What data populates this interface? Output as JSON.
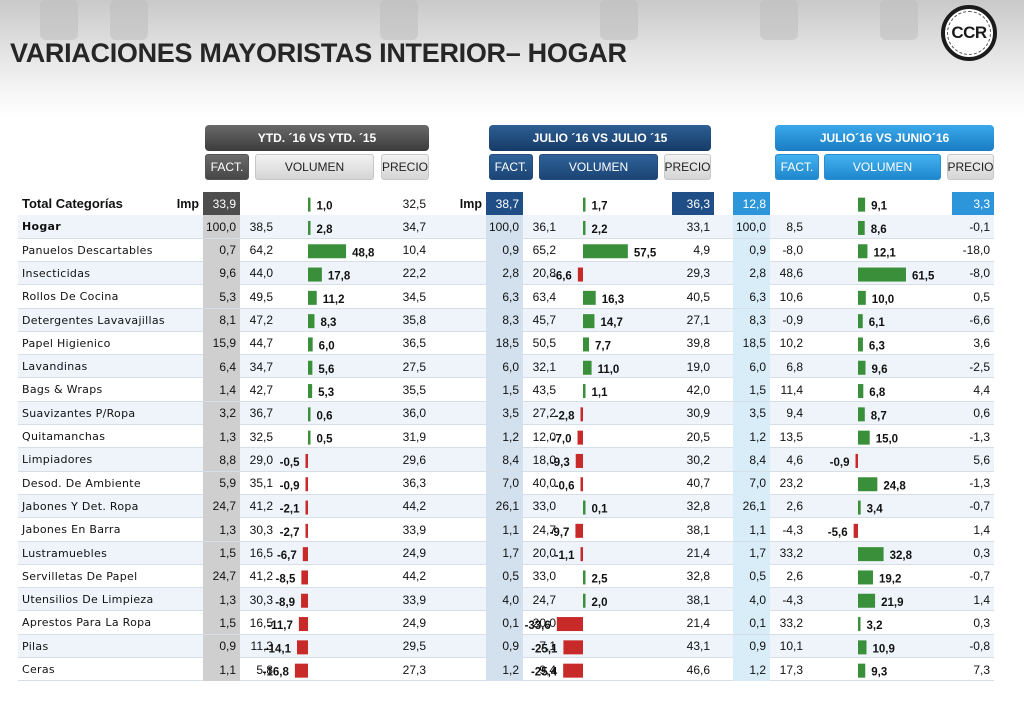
{
  "page": {
    "title": "VARIACIONES MAYORISTAS INTERIOR– HOGAR",
    "logo_text": "CCR"
  },
  "groups": {
    "ytd": {
      "label": "YTD. ´16 VS YTD. ´15"
    },
    "jul": {
      "label": "JULIO ´16 VS JULIO ´15"
    },
    "jun": {
      "label": "JULIO´16 VS JUNIO´16"
    }
  },
  "subheaders": {
    "fact": "FACT.",
    "volumen": "VOLUMEN",
    "precio": "PRECIO"
  },
  "colors": {
    "positive_bar": "#3a8f3a",
    "negative_bar": "#c82a2a",
    "zero_line": "#6aaa6a"
  },
  "chart_data": {
    "type": "table",
    "header": {
      "category": "Total  Categorías",
      "imp_label": "Imp",
      "ytd": {
        "imp": "33,9",
        "vol": 1.0,
        "precio": "32,5"
      },
      "jul": {
        "imp": "38,7",
        "vol": 1.7,
        "precio": "36,3"
      },
      "jun": {
        "imp": "12,8",
        "vol": 9.1,
        "precio": "3,3"
      }
    },
    "rows": [
      {
        "name": "Hogar",
        "bold": true,
        "ytd": {
          "imp": "100,0",
          "fact": "38,5",
          "vol": 2.8,
          "precio": "34,7"
        },
        "jul": {
          "imp": "100,0",
          "fact": "36,1",
          "vol": 2.2,
          "precio": "33,1"
        },
        "jun": {
          "imp": "100,0",
          "fact": "8,5",
          "vol": 8.6,
          "precio": "-0,1"
        }
      },
      {
        "name": "Panuelos Descartables",
        "ytd": {
          "imp": "0,7",
          "fact": "64,2",
          "vol": 48.8,
          "precio": "10,4"
        },
        "jul": {
          "imp": "0,9",
          "fact": "65,2",
          "vol": 57.5,
          "precio": "4,9"
        },
        "jun": {
          "imp": "0,9",
          "fact": "-8,0",
          "vol": 12.1,
          "precio": "-18,0"
        }
      },
      {
        "name": "Insecticidas",
        "ytd": {
          "imp": "9,6",
          "fact": "44,0",
          "vol": 17.8,
          "precio": "22,2"
        },
        "jul": {
          "imp": "2,8",
          "fact": "20,8",
          "vol": -6.6,
          "precio": "29,3"
        },
        "jun": {
          "imp": "2,8",
          "fact": "48,6",
          "vol": 61.5,
          "precio": "-8,0"
        }
      },
      {
        "name": "Rollos De Cocina",
        "ytd": {
          "imp": "5,3",
          "fact": "49,5",
          "vol": 11.2,
          "precio": "34,5"
        },
        "jul": {
          "imp": "6,3",
          "fact": "63,4",
          "vol": 16.3,
          "precio": "40,5"
        },
        "jun": {
          "imp": "6,3",
          "fact": "10,6",
          "vol": 10.0,
          "precio": "0,5"
        }
      },
      {
        "name": "Detergentes Lavavajillas",
        "ytd": {
          "imp": "8,1",
          "fact": "47,2",
          "vol": 8.3,
          "precio": "35,8"
        },
        "jul": {
          "imp": "8,3",
          "fact": "45,7",
          "vol": 14.7,
          "precio": "27,1"
        },
        "jun": {
          "imp": "8,3",
          "fact": "-0,9",
          "vol": 6.1,
          "precio": "-6,6"
        }
      },
      {
        "name": "Papel Higienico",
        "ytd": {
          "imp": "15,9",
          "fact": "44,7",
          "vol": 6.0,
          "precio": "36,5"
        },
        "jul": {
          "imp": "18,5",
          "fact": "50,5",
          "vol": 7.7,
          "precio": "39,8"
        },
        "jun": {
          "imp": "18,5",
          "fact": "10,2",
          "vol": 6.3,
          "precio": "3,6"
        }
      },
      {
        "name": "Lavandinas",
        "ytd": {
          "imp": "6,4",
          "fact": "34,7",
          "vol": 5.6,
          "precio": "27,5"
        },
        "jul": {
          "imp": "6,0",
          "fact": "32,1",
          "vol": 11.0,
          "precio": "19,0"
        },
        "jun": {
          "imp": "6,0",
          "fact": "6,8",
          "vol": 9.6,
          "precio": "-2,5"
        }
      },
      {
        "name": "Bags & Wraps",
        "ytd": {
          "imp": "1,4",
          "fact": "42,7",
          "vol": 5.3,
          "precio": "35,5"
        },
        "jul": {
          "imp": "1,5",
          "fact": "43,5",
          "vol": 1.1,
          "precio": "42,0"
        },
        "jun": {
          "imp": "1,5",
          "fact": "11,4",
          "vol": 6.8,
          "precio": "4,4"
        }
      },
      {
        "name": "Suavizantes P/Ropa",
        "ytd": {
          "imp": "3,2",
          "fact": "36,7",
          "vol": 0.6,
          "precio": "36,0"
        },
        "jul": {
          "imp": "3,5",
          "fact": "27,2",
          "vol": -2.8,
          "precio": "30,9"
        },
        "jun": {
          "imp": "3,5",
          "fact": "9,4",
          "vol": 8.7,
          "precio": "0,6"
        }
      },
      {
        "name": "Quitamanchas",
        "ytd": {
          "imp": "1,3",
          "fact": "32,5",
          "vol": 0.5,
          "precio": "31,9"
        },
        "jul": {
          "imp": "1,2",
          "fact": "12,0",
          "vol": -7.0,
          "precio": "20,5"
        },
        "jun": {
          "imp": "1,2",
          "fact": "13,5",
          "vol": 15.0,
          "precio": "-1,3"
        }
      },
      {
        "name": "Limpiadores",
        "ytd": {
          "imp": "8,8",
          "fact": "29,0",
          "vol": -0.5,
          "precio": "29,6"
        },
        "jul": {
          "imp": "8,4",
          "fact": "18,0",
          "vol": -9.3,
          "precio": "30,2"
        },
        "jun": {
          "imp": "8,4",
          "fact": "4,6",
          "vol": -0.9,
          "precio": "5,6"
        }
      },
      {
        "name": "Desod. De Ambiente",
        "ytd": {
          "imp": "5,9",
          "fact": "35,1",
          "vol": -0.9,
          "precio": "36,3"
        },
        "jul": {
          "imp": "7,0",
          "fact": "40,0",
          "vol": -0.6,
          "precio": "40,7"
        },
        "jun": {
          "imp": "7,0",
          "fact": "23,2",
          "vol": 24.8,
          "precio": "-1,3"
        }
      },
      {
        "name": "Jabones Y Det. Ropa",
        "ytd": {
          "imp": "24,7",
          "fact": "41,2",
          "vol": -2.1,
          "precio": "44,2"
        },
        "jul": {
          "imp": "26,1",
          "fact": "33,0",
          "vol": 0.1,
          "precio": "32,8"
        },
        "jun": {
          "imp": "26,1",
          "fact": "2,6",
          "vol": 3.4,
          "precio": "-0,7"
        }
      },
      {
        "name": "Jabones En Barra",
        "ytd": {
          "imp": "1,3",
          "fact": "30,3",
          "vol": -2.7,
          "precio": "33,9"
        },
        "jul": {
          "imp": "1,1",
          "fact": "24,7",
          "vol": -9.7,
          "precio": "38,1"
        },
        "jun": {
          "imp": "1,1",
          "fact": "-4,3",
          "vol": -5.6,
          "precio": "1,4"
        }
      },
      {
        "name": "Lustramuebles",
        "ytd": {
          "imp": "1,5",
          "fact": "16,5",
          "vol": -6.7,
          "precio": "24,9"
        },
        "jul": {
          "imp": "1,7",
          "fact": "20,0",
          "vol": -1.1,
          "precio": "21,4"
        },
        "jun": {
          "imp": "1,7",
          "fact": "33,2",
          "vol": 32.8,
          "precio": "0,3"
        }
      },
      {
        "name": "Servilletas De Papel",
        "ytd": {
          "imp": "24,7",
          "fact": "41,2",
          "vol": -8.5,
          "precio": "44,2"
        },
        "jul": {
          "imp": "0,5",
          "fact": "33,0",
          "vol": 2.5,
          "precio": "32,8"
        },
        "jun": {
          "imp": "0,5",
          "fact": "2,6",
          "vol": 19.2,
          "precio": "-0,7"
        }
      },
      {
        "name": "Utensilios De Limpieza",
        "ytd": {
          "imp": "1,3",
          "fact": "30,3",
          "vol": -8.9,
          "precio": "33,9"
        },
        "jul": {
          "imp": "4,0",
          "fact": "24,7",
          "vol": 2.0,
          "precio": "38,1"
        },
        "jun": {
          "imp": "4,0",
          "fact": "-4,3",
          "vol": 21.9,
          "precio": "1,4"
        }
      },
      {
        "name": "Aprestos Para La Ropa",
        "ytd": {
          "imp": "1,5",
          "fact": "16,5",
          "vol": -11.7,
          "precio": "24,9"
        },
        "jul": {
          "imp": "0,1",
          "fact": "20,0",
          "vol": -33.6,
          "precio": "21,4"
        },
        "jun": {
          "imp": "0,1",
          "fact": "33,2",
          "vol": 3.2,
          "precio": "0,3"
        }
      },
      {
        "name": "Pilas",
        "ytd": {
          "imp": "0,9",
          "fact": "11,3",
          "vol": -14.1,
          "precio": "29,5"
        },
        "jul": {
          "imp": "0,9",
          "fact": "7,1",
          "vol": -25.1,
          "precio": "43,1"
        },
        "jun": {
          "imp": "0,9",
          "fact": "10,1",
          "vol": 10.9,
          "precio": "-0,8"
        }
      },
      {
        "name": "Ceras",
        "ytd": {
          "imp": "1,1",
          "fact": "5,8",
          "vol": -16.8,
          "precio": "27,3"
        },
        "jul": {
          "imp": "1,2",
          "fact": "9,4",
          "vol": -25.4,
          "precio": "46,6"
        },
        "jun": {
          "imp": "1,2",
          "fact": "17,3",
          "vol": 9.3,
          "precio": "7,3"
        }
      }
    ]
  }
}
